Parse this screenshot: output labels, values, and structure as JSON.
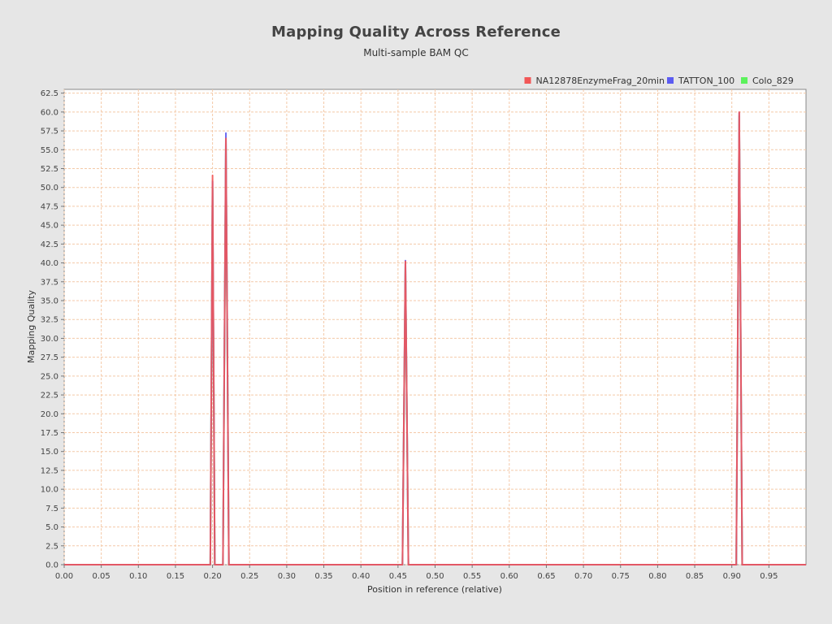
{
  "chart_data": {
    "type": "line",
    "title": "Mapping Quality Across Reference",
    "subtitle": "Multi-sample BAM QC",
    "xlabel": "Position in reference (relative)",
    "ylabel": "Mapping Quality",
    "xlim": [
      0,
      1
    ],
    "ylim": [
      0,
      63
    ],
    "x_ticks": [
      "0.00",
      "0.05",
      "0.10",
      "0.15",
      "0.20",
      "0.25",
      "0.30",
      "0.35",
      "0.40",
      "0.45",
      "0.50",
      "0.55",
      "0.60",
      "0.65",
      "0.70",
      "0.75",
      "0.80",
      "0.85",
      "0.90",
      "0.95"
    ],
    "y_ticks": [
      "0.0",
      "2.5",
      "5.0",
      "7.5",
      "10.0",
      "12.5",
      "15.0",
      "17.5",
      "20.0",
      "22.5",
      "25.0",
      "27.5",
      "30.0",
      "32.5",
      "35.0",
      "37.5",
      "40.0",
      "42.5",
      "45.0",
      "47.5",
      "50.0",
      "52.5",
      "55.0",
      "57.5",
      "60.0",
      "62.5"
    ],
    "grid": true,
    "legend_position": "top-right",
    "series": [
      {
        "name": "NA12878EnzymeFrag_20min",
        "color": "#f25757",
        "x": [
          0.0,
          0.197,
          0.2,
          0.203,
          0.214,
          0.218,
          0.222,
          0.456,
          0.46,
          0.464,
          0.906,
          0.91,
          0.914,
          1.0
        ],
        "y": [
          0,
          0,
          51.6,
          0,
          0,
          56.5,
          0,
          0,
          40.2,
          0,
          0,
          60.0,
          0,
          0
        ]
      },
      {
        "name": "TATTON_100",
        "color": "#5c5cf2",
        "x": [
          0.0,
          0.197,
          0.2,
          0.203,
          0.214,
          0.218,
          0.222,
          0.456,
          0.46,
          0.464,
          0.906,
          0.91,
          0.914,
          1.0
        ],
        "y": [
          0,
          0,
          50.8,
          0,
          0,
          57.2,
          0,
          0,
          40.3,
          0,
          0,
          59.9,
          0,
          0
        ]
      },
      {
        "name": "Colo_829",
        "color": "#5cf25c",
        "x": [
          0.0,
          0.197,
          0.2,
          0.203,
          0.214,
          0.218,
          0.222,
          0.456,
          0.46,
          0.464,
          0.906,
          0.91,
          0.914,
          1.0
        ],
        "y": [
          0,
          0,
          50.0,
          0,
          0,
          55.8,
          0,
          0,
          39.5,
          0,
          0,
          59.5,
          0,
          0
        ]
      }
    ]
  }
}
